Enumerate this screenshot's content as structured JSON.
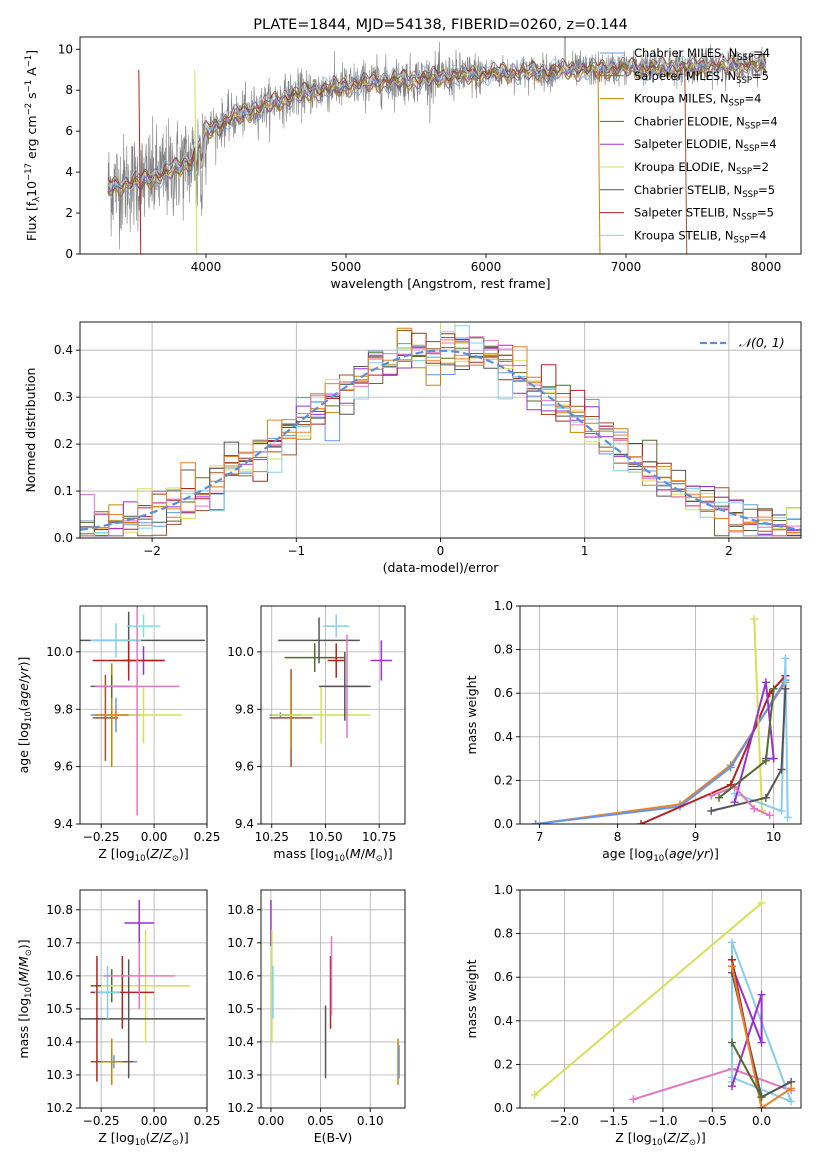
{
  "colors": {
    "Chabrier MILES": "#6495ed",
    "Salpeter MILES": "#a0522d",
    "Kroupa MILES": "#cd8500",
    "Chabrier ELODIE": "#556b2f",
    "Salpeter ELODIE": "#9932cc",
    "Kroupa ELODIE": "#d4e157",
    "Chabrier STELIB": "#555555",
    "Salpeter STELIB": "#b22222",
    "Kroupa STELIB": "#87ceeb",
    "extra_pink": "#e377c2",
    "extra_orange": "#e8822a",
    "extra_cyan": "#7fdfe0",
    "observed_spectrum": "#808080",
    "gaussian": "#5b8fd9"
  },
  "chart_data": [
    {
      "type": "line",
      "title": "PLATE=1844, MJD=54138, FIBERID=0260, z=0.144",
      "xlabel": "wavelength [Angstrom, rest frame]",
      "ylabel": "Flux [f$_\\lambda$10$^{-17}$ erg cm$^{-2}$ s$^{-1}$ A$^{-1}$]",
      "ylabel_parts": {
        "a": "Flux [f",
        "b": "λ",
        "c": "10",
        "d": "−17",
        "e": " erg cm",
        "f": "−2",
        "g": " s",
        "h": "−1",
        "i": " A",
        "j": "−1",
        "k": "]"
      },
      "xlim": [
        3100,
        8250
      ],
      "ylim": [
        0,
        10.6
      ],
      "xticks": [
        "4000",
        "5000",
        "6000",
        "7000",
        "8000"
      ],
      "yticks": [
        "0",
        "2",
        "4",
        "6",
        "8",
        "10"
      ],
      "legend": [
        {
          "name": "Chabrier MILES",
          "nssp": "=4"
        },
        {
          "name": "Salpeter MILES",
          "nssp": "=5"
        },
        {
          "name": "Kroupa MILES",
          "nssp": "=4"
        },
        {
          "name": "Chabrier ELODIE",
          "nssp": "=4"
        },
        {
          "name": "Salpeter ELODIE",
          "nssp": "=4"
        },
        {
          "name": "Kroupa ELODIE",
          "nssp": "=2"
        },
        {
          "name": "Chabrier STELIB",
          "nssp": "=5"
        },
        {
          "name": "Salpeter STELIB",
          "nssp": "=5"
        },
        {
          "name": "Kroupa STELIB",
          "nssp": "=4"
        }
      ],
      "legend_sub": "SSP",
      "legend_prefix": "N",
      "continuum": {
        "x": [
          3300,
          3500,
          3700,
          3900,
          4000,
          4200,
          4400,
          4600,
          4800,
          5000,
          5200,
          5400,
          5600,
          5800,
          6000,
          6200,
          6400,
          6600,
          6800,
          7000,
          7200,
          7400,
          7600,
          7800,
          8000
        ],
        "y": [
          3.3,
          3.5,
          3.9,
          4.6,
          6.0,
          6.7,
          7.2,
          7.7,
          8.0,
          8.2,
          8.4,
          8.5,
          8.6,
          8.7,
          8.8,
          8.9,
          8.9,
          9.0,
          9.0,
          9.1,
          9.1,
          9.1,
          9.2,
          9.2,
          9.3
        ]
      }
    },
    {
      "type": "histogram",
      "xlabel": "(data-model)/error",
      "ylabel": "Normed distribution",
      "xlim": [
        -2.5,
        2.5
      ],
      "ylim": [
        0,
        0.46
      ],
      "xticks": [
        "−2",
        "−1",
        "0",
        "1",
        "2"
      ],
      "yticks": [
        "0.0",
        "0.1",
        "0.2",
        "0.3",
        "0.4"
      ],
      "legend": "𝒩(0, 1)",
      "bin_width": 0.1,
      "bins_start": -2.5,
      "reference": "normal(0,1)"
    },
    {
      "type": "scatter",
      "xlabel": "Z [log$_{10}$(Z/Z$_\\odot$)]",
      "xlabel_parts": {
        "a": "Z [log",
        "b": "10",
        "c": "(",
        "d": "Z",
        "e": "/",
        "f": "Z",
        "g": "⊙",
        "h": ")]"
      },
      "ylabel": "age  [log$_{10}$(age/yr)]",
      "ylabel_parts": {
        "a": "age  [log",
        "b": "10",
        "c": "(",
        "d": "age",
        "e": "/",
        "f": "yr",
        "g": ")]"
      },
      "xlim": [
        -0.35,
        0.25
      ],
      "ylim": [
        9.4,
        10.16
      ],
      "xticks": [
        "−0.25",
        "0.00",
        "0.25"
      ],
      "yticks": [
        "9.4",
        "9.6",
        "9.8",
        "10.0"
      ],
      "points": [
        {
          "series": "Chabrier MILES",
          "x": -0.18,
          "y": 9.78,
          "xerr": 0.12,
          "yerr": 0.06
        },
        {
          "series": "Salpeter MILES",
          "x": -0.23,
          "y": 9.77,
          "xerr": 0.06,
          "yerr": 0.15
        },
        {
          "series": "Kroupa MILES",
          "x": -0.2,
          "y": 9.78,
          "xerr": 0.08,
          "yerr": 0.18
        },
        {
          "series": "Chabrier ELODIE",
          "x": -0.2,
          "y": 9.88,
          "xerr": 0.1,
          "yerr": 0.04
        },
        {
          "series": "Salpeter ELODIE",
          "x": -0.05,
          "y": 9.97,
          "xerr": 0.1,
          "yerr": 0.05
        },
        {
          "series": "Kroupa ELODIE",
          "x": -0.05,
          "y": 9.78,
          "xerr": 0.18,
          "yerr": 0.1
        },
        {
          "series": "Chabrier STELIB",
          "x": -0.12,
          "y": 10.04,
          "xerr": 0.36,
          "yerr": 0.1
        },
        {
          "series": "Salpeter STELIB",
          "x": -0.12,
          "y": 9.97,
          "xerr": 0.17,
          "yerr": 0.07
        },
        {
          "series": "Kroupa STELIB",
          "x": -0.18,
          "y": 10.04,
          "xerr": 0.12,
          "yerr": 0.06
        },
        {
          "series": "extra_pink",
          "x": -0.08,
          "y": 9.88,
          "xerr": 0.2,
          "yerr": 0.45
        },
        {
          "series": "extra_cyan",
          "x": -0.05,
          "y": 10.09,
          "xerr": 0.08,
          "yerr": 0.04
        },
        {
          "series": "extra_orange",
          "x": -0.18,
          "y": 9.78,
          "xerr": 0.06,
          "yerr": 0.02
        }
      ]
    },
    {
      "type": "scatter",
      "xlabel": "mass [log$_{10}$(M/M$_\\odot$)]",
      "xlabel_parts": {
        "a": "mass [log",
        "b": "10",
        "c": "(",
        "d": "M",
        "e": "/",
        "f": "M",
        "g": "⊙",
        "h": ")]"
      },
      "xlim": [
        10.2,
        10.87
      ],
      "ylim": [
        9.4,
        10.16
      ],
      "xticks": [
        "10.25",
        "10.50",
        "10.75"
      ],
      "yticks": [
        "9.4",
        "9.6",
        "9.8",
        "10.0"
      ],
      "points": [
        {
          "series": "Chabrier MILES",
          "x": 10.29,
          "y": 9.78,
          "xerr": 0.05,
          "yerr": 0.01
        },
        {
          "series": "Salpeter MILES",
          "x": 10.34,
          "y": 9.77,
          "xerr": 0.1,
          "yerr": 0.17
        },
        {
          "series": "Kroupa MILES",
          "x": 10.34,
          "y": 9.78,
          "xerr": 0.05,
          "yerr": 0.12
        },
        {
          "series": "Chabrier ELODIE",
          "x": 10.45,
          "y": 9.98,
          "xerr": 0.14,
          "yerr": 0.05
        },
        {
          "series": "Salpeter ELODIE",
          "x": 10.76,
          "y": 9.97,
          "xerr": 0.05,
          "yerr": 0.07
        },
        {
          "series": "Kroupa ELODIE",
          "x": 10.48,
          "y": 9.78,
          "xerr": 0.23,
          "yerr": 0.1
        },
        {
          "series": "Chabrier STELIB",
          "x": 10.47,
          "y": 10.04,
          "xerr": 0.19,
          "yerr": 0.08
        },
        {
          "series": "Salpeter STELIB",
          "x": 10.55,
          "y": 9.97,
          "xerr": 0.04,
          "yerr": 0.06
        },
        {
          "series": "Kroupa STELIB",
          "x": 10.55,
          "y": 10.09,
          "xerr": 0.06,
          "yerr": 0.04
        },
        {
          "series": "extra_pink",
          "x": 10.6,
          "y": 9.88,
          "xerr": 0.1,
          "yerr": 0.18
        },
        {
          "series": "Chabrier STELIB",
          "x": 10.59,
          "y": 9.88,
          "xerr": 0.12,
          "yerr": 0.12
        }
      ]
    },
    {
      "type": "line",
      "xlabel": "age  [log$_{10}$(age/yr)]",
      "xlabel_parts": {
        "a": "age  [log",
        "b": "10",
        "c": "(",
        "d": "age",
        "e": "/",
        "f": "yr",
        "g": ")]"
      },
      "ylabel": "mass weight",
      "xlim": [
        6.75,
        10.35
      ],
      "ylim": [
        0.0,
        1.0
      ],
      "xticks": [
        "7",
        "8",
        "9",
        "10"
      ],
      "yticks": [
        "0.0",
        "0.2",
        "0.4",
        "0.6",
        "0.8",
        "1.0"
      ],
      "series": [
        {
          "name": "extra_orange",
          "x": [
            6.95,
            8.8,
            9.45,
            10.15
          ],
          "y": [
            0.0,
            0.09,
            0.27,
            0.65
          ]
        },
        {
          "name": "Chabrier MILES",
          "x": [
            6.95,
            8.8,
            9.45,
            10.15
          ],
          "y": [
            0.0,
            0.08,
            0.26,
            0.66
          ]
        },
        {
          "name": "Salpeter STELIB",
          "x": [
            8.3,
            9.45,
            9.95,
            10.15
          ],
          "y": [
            0.0,
            0.18,
            0.6,
            0.68
          ]
        },
        {
          "name": "Kroupa ELODIE",
          "x": [
            9.75,
            9.85
          ],
          "y": [
            0.94,
            0.06
          ]
        },
        {
          "name": "Kroupa STELIB",
          "x": [
            9.5,
            10.1,
            10.15,
            10.18
          ],
          "y": [
            0.14,
            0.06,
            0.76,
            0.03
          ]
        },
        {
          "name": "Salpeter ELODIE",
          "x": [
            9.5,
            9.9,
            10.0,
            9.9
          ],
          "y": [
            0.1,
            0.65,
            0.3,
            0.3
          ]
        },
        {
          "name": "Chabrier STELIB",
          "x": [
            9.2,
            9.9,
            10.1,
            10.15
          ],
          "y": [
            0.06,
            0.12,
            0.25,
            0.62
          ]
        },
        {
          "name": "extra_pink",
          "x": [
            9.2,
            9.5,
            9.75,
            9.95
          ],
          "y": [
            0.13,
            0.17,
            0.07,
            0.04
          ]
        },
        {
          "name": "Chabrier ELODIE",
          "x": [
            9.3,
            9.9,
            10.0
          ],
          "y": [
            0.12,
            0.29,
            0.62
          ]
        }
      ]
    },
    {
      "type": "scatter",
      "xlabel": "Z [log$_{10}$(Z/Z$_\\odot$)]",
      "xlabel_parts": {
        "a": "Z [log",
        "b": "10",
        "c": "(",
        "d": "Z",
        "e": "/",
        "f": "Z",
        "g": "⊙",
        "h": ")]"
      },
      "ylabel": "mass [log$_{10}$(M/M$_\\odot$)]",
      "ylabel_parts": {
        "a": "mass [log",
        "b": "10",
        "c": "(",
        "d": "M",
        "e": "/",
        "f": "M",
        "g": "⊙",
        "h": ")]"
      },
      "xlim": [
        -0.35,
        0.25
      ],
      "ylim": [
        10.2,
        10.86
      ],
      "xticks": [
        "−0.25",
        "0.00",
        "0.25"
      ],
      "yticks": [
        "10.2",
        "10.3",
        "10.4",
        "10.5",
        "10.6",
        "10.7",
        "10.8"
      ],
      "points": [
        {
          "series": "Chabrier MILES",
          "x": -0.19,
          "y": 10.34,
          "xerr": 0.11,
          "yerr": 0.02
        },
        {
          "series": "Salpeter MILES",
          "x": -0.2,
          "y": 10.34,
          "xerr": 0.1,
          "yerr": 0.06
        },
        {
          "series": "Kroupa MILES",
          "x": -0.2,
          "y": 10.34,
          "xerr": 0.05,
          "yerr": 0.07
        },
        {
          "series": "Chabrier ELODIE",
          "x": -0.2,
          "y": 10.57,
          "xerr": 0.1,
          "yerr": 0.05
        },
        {
          "series": "Salpeter ELODIE",
          "x": -0.07,
          "y": 10.76,
          "xerr": 0.07,
          "yerr": 0.07
        },
        {
          "series": "Kroupa ELODIE",
          "x": -0.04,
          "y": 10.57,
          "xerr": 0.21,
          "yerr": 0.17
        },
        {
          "series": "Chabrier STELIB",
          "x": -0.12,
          "y": 10.47,
          "xerr": 0.36,
          "yerr": 0.18
        },
        {
          "series": "Salpeter STELIB",
          "x": -0.15,
          "y": 10.55,
          "xerr": 0.15,
          "yerr": 0.11
        },
        {
          "series": "Kroupa STELIB",
          "x": -0.22,
          "y": 10.55,
          "xerr": 0.06,
          "yerr": 0.08
        },
        {
          "series": "extra_pink",
          "x": -0.07,
          "y": 10.6,
          "xerr": 0.17,
          "yerr": 0.1
        },
        {
          "series": "Salpeter STELIB",
          "x": -0.27,
          "y": 10.47,
          "xerr": 0.01,
          "yerr": 0.19
        }
      ]
    },
    {
      "type": "scatter",
      "xlabel": "E(B-V)",
      "xlim": [
        -0.01,
        0.135
      ],
      "ylim": [
        10.2,
        10.86
      ],
      "xticks": [
        "0.00",
        "0.05",
        "0.10"
      ],
      "yticks": [
        "10.2",
        "10.3",
        "10.4",
        "10.5",
        "10.6",
        "10.7",
        "10.8"
      ],
      "points": [
        {
          "series": "Salpeter ELODIE",
          "x": 0.0,
          "y": 10.76,
          "xerr": 0.0,
          "yerr": 0.07
        },
        {
          "series": "Kroupa ELODIE",
          "x": 0.001,
          "y": 10.57,
          "xerr": 0.0,
          "yerr": 0.17
        },
        {
          "series": "Kroupa STELIB",
          "x": 0.002,
          "y": 10.55,
          "xerr": 0.0,
          "yerr": 0.08
        },
        {
          "series": "Chabrier STELIB",
          "x": 0.055,
          "y": 10.4,
          "xerr": 0.0,
          "yerr": 0.11
        },
        {
          "series": "Salpeter STELIB",
          "x": 0.06,
          "y": 10.55,
          "xerr": 0.0,
          "yerr": 0.11
        },
        {
          "series": "extra_pink",
          "x": 0.061,
          "y": 10.6,
          "xerr": 0.0,
          "yerr": 0.12
        },
        {
          "series": "Kroupa MILES",
          "x": 0.128,
          "y": 10.34,
          "xerr": 0.0,
          "yerr": 0.07
        },
        {
          "series": "Chabrier MILES",
          "x": 0.129,
          "y": 10.34,
          "xerr": 0.0,
          "yerr": 0.05
        }
      ]
    },
    {
      "type": "line",
      "xlabel": "Z [log$_{10}$(Z/Z$_\\odot$)]",
      "xlabel_parts": {
        "a": "Z [log",
        "b": "10",
        "c": "(",
        "d": "Z",
        "e": "/",
        "f": "Z",
        "g": "⊙",
        "h": ")]"
      },
      "ylabel": "mass weight",
      "xlim": [
        -2.45,
        0.4
      ],
      "ylim": [
        0.0,
        1.0
      ],
      "xticks": [
        "−2.0",
        "−1.5",
        "−1.0",
        "−0.5",
        "0.0"
      ],
      "yticks": [
        "0.0",
        "0.2",
        "0.4",
        "0.6",
        "0.8",
        "1.0"
      ],
      "series": [
        {
          "name": "Kroupa ELODIE",
          "x": [
            -2.3,
            0.0
          ],
          "y": [
            0.06,
            0.94
          ]
        },
        {
          "name": "extra_pink",
          "x": [
            -1.3,
            -0.3,
            0.3
          ],
          "y": [
            0.04,
            0.18,
            0.08
          ]
        },
        {
          "name": "Kroupa STELIB",
          "x": [
            -0.3,
            -0.3,
            0.3,
            -0.3
          ],
          "y": [
            0.12,
            0.76,
            0.03,
            0.14
          ]
        },
        {
          "name": "Salpeter ELODIE",
          "x": [
            -0.3,
            0.0,
            0.0,
            -0.3
          ],
          "y": [
            0.1,
            0.52,
            0.3,
            0.65
          ]
        },
        {
          "name": "Chabrier STELIB",
          "x": [
            -0.3,
            0.0,
            0.3
          ],
          "y": [
            0.62,
            0.05,
            0.12
          ]
        },
        {
          "name": "Salpeter STELIB",
          "x": [
            -0.3,
            0.0
          ],
          "y": [
            0.68,
            0.0
          ]
        },
        {
          "name": "extra_orange",
          "x": [
            -0.3,
            0.0,
            0.3
          ],
          "y": [
            0.65,
            0.0,
            0.09
          ]
        },
        {
          "name": "Chabrier ELODIE",
          "x": [
            -0.3,
            0.0
          ],
          "y": [
            0.3,
            0.05
          ]
        }
      ]
    }
  ]
}
